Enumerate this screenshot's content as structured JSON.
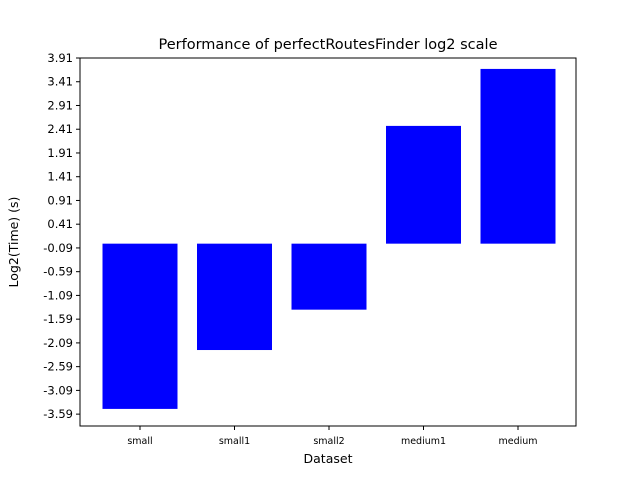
{
  "chart_data": {
    "type": "bar",
    "title": "Performance of perfectRoutesFinder log2 scale",
    "xlabel": "Dataset",
    "ylabel": "Log2(Time) (s)",
    "categories": [
      "small",
      "small1",
      "small2",
      "medium1",
      "medium"
    ],
    "values": [
      -3.48,
      -2.24,
      -1.39,
      2.48,
      3.68
    ],
    "bar_color": "#0000ff",
    "ylim": [
      -3.84,
      3.91
    ],
    "yticks": [
      "-3.59",
      "-3.09",
      "-2.59",
      "-2.09",
      "-1.59",
      "-1.09",
      "-0.59",
      "-0.09",
      "0.41",
      "0.91",
      "1.41",
      "1.91",
      "2.41",
      "2.91",
      "3.41",
      "3.91"
    ],
    "grid": false,
    "legend": "none"
  }
}
